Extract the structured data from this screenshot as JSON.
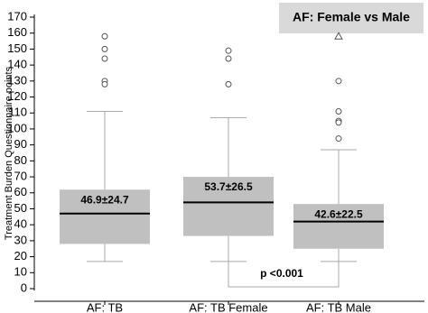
{
  "chart_data": {
    "type": "box",
    "title": "AF: Female vs Male",
    "y_label": "Treatment Burden Questionnaire points",
    "categories": [
      "AF: TB",
      "AF: TB Female",
      "AF: TB Male"
    ],
    "whisker_low": [
      17,
      17,
      17
    ],
    "q1": [
      28,
      33,
      25
    ],
    "median": [
      47,
      54,
      42
    ],
    "q3": [
      62,
      70,
      53
    ],
    "whisker_high": [
      111,
      107,
      87
    ],
    "outliers": [
      [
        158,
        150,
        144,
        130,
        128
      ],
      [
        149,
        144,
        128
      ],
      [
        130,
        111,
        105,
        104,
        94
      ]
    ],
    "extreme_outliers": [
      [],
      [],
      [
        158
      ]
    ],
    "box_labels": [
      "46.9±24.7",
      "53.7±26.5",
      "42.6±22.5"
    ],
    "annotation": "p <0.001",
    "color": "#c0c0c0",
    "ylim": [
      0,
      170
    ],
    "yticks": [
      0,
      10,
      20,
      30,
      40,
      50,
      60,
      70,
      80,
      90,
      100,
      110,
      120,
      130,
      140,
      150,
      160,
      170
    ]
  }
}
